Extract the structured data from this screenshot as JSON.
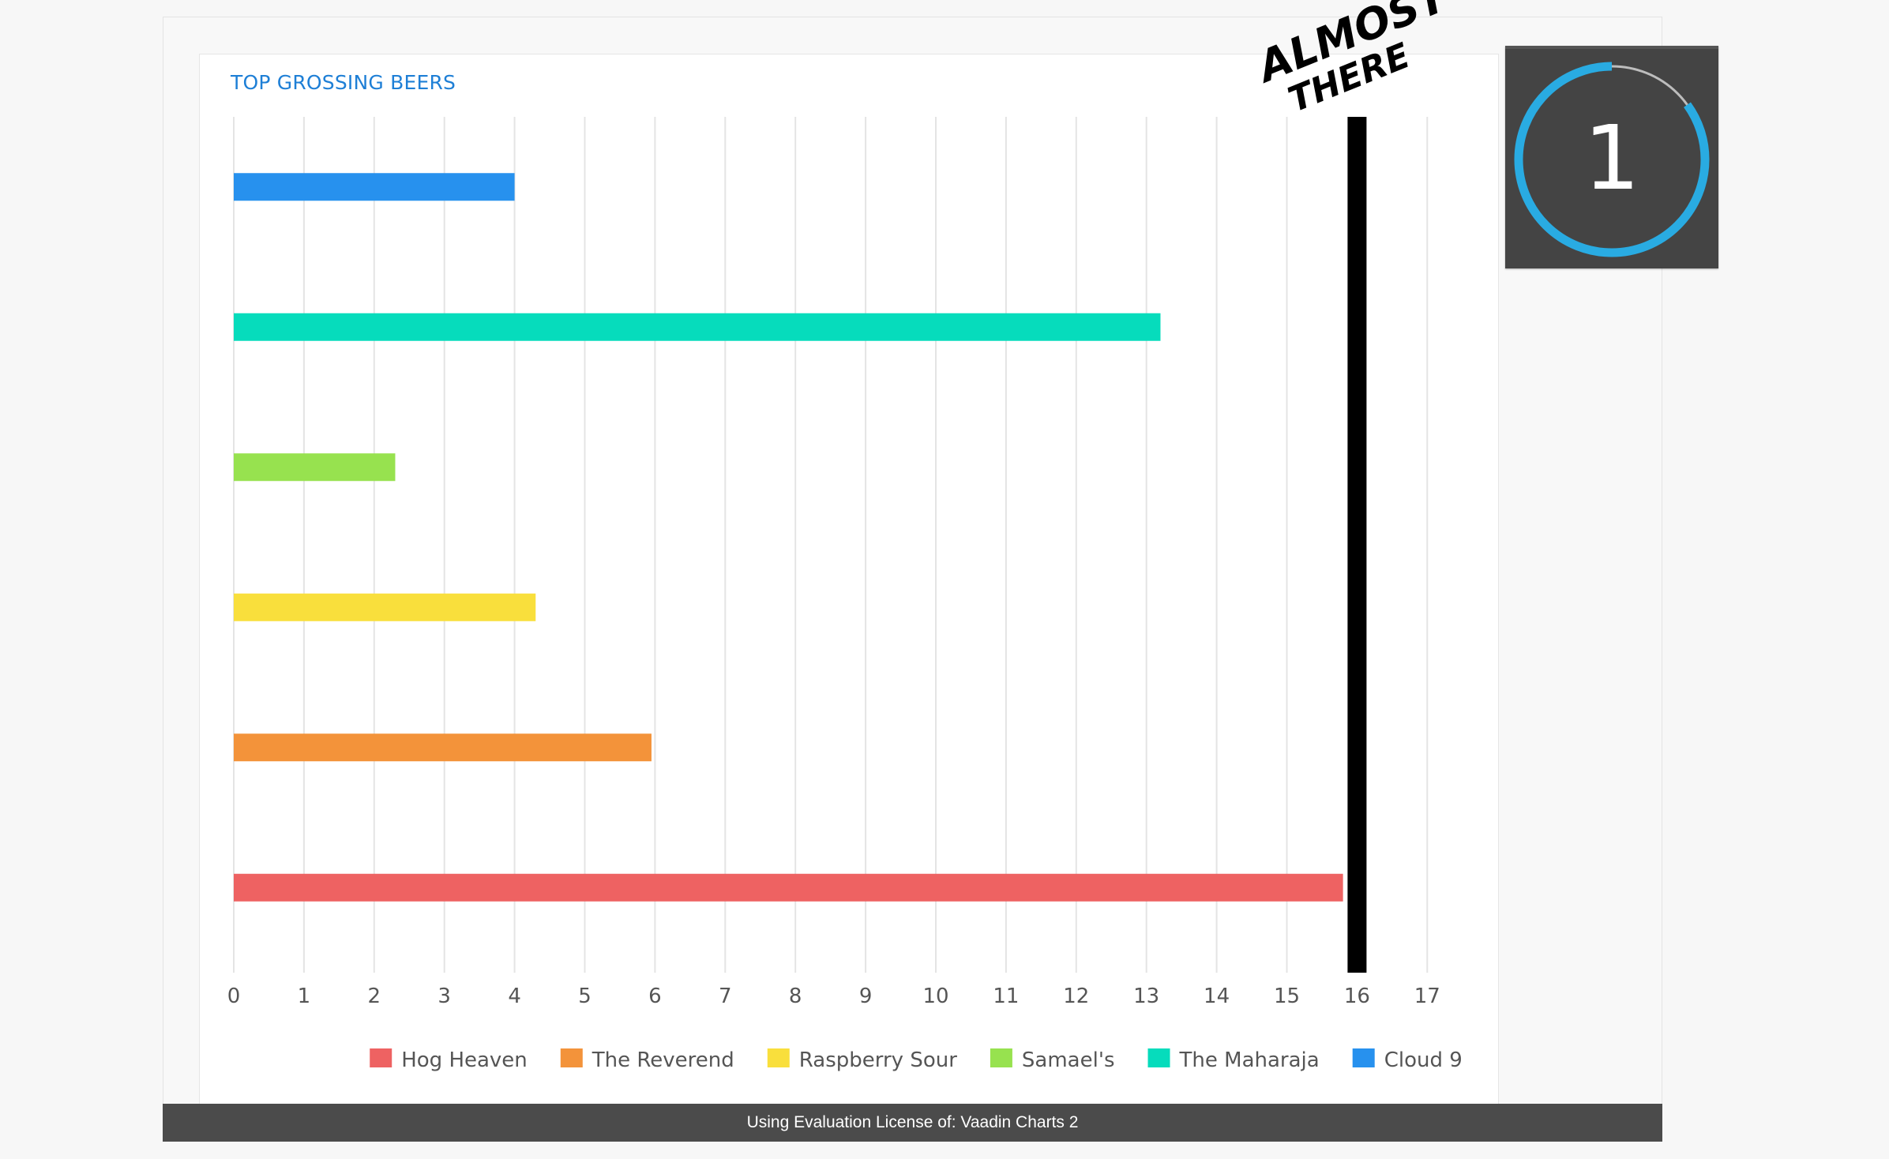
{
  "chart_data": {
    "type": "bar",
    "orientation": "horizontal",
    "title": "TOP GROSSING BEERS",
    "categories": [
      "Cloud 9",
      "The Maharaja",
      "Samael's",
      "Raspberry Sour",
      "The Reverend",
      "Hog Heaven"
    ],
    "series": [
      {
        "name": "Hog Heaven",
        "color": "#ee6262",
        "category": "Hog Heaven",
        "value": 15.8
      },
      {
        "name": "The Reverend",
        "color": "#f3933a",
        "category": "The Reverend",
        "value": 5.95
      },
      {
        "name": "Raspberry Sour",
        "color": "#f9df3c",
        "category": "Raspberry Sour",
        "value": 4.3
      },
      {
        "name": "Samael's",
        "color": "#97e24f",
        "category": "Samael's",
        "value": 2.3
      },
      {
        "name": "The Maharaja",
        "color": "#06dcbc",
        "category": "The Maharaja",
        "value": 13.2
      },
      {
        "name": "Cloud 9",
        "color": "#2791ee",
        "category": "Cloud 9",
        "value": 4.0
      }
    ],
    "xlim": [
      0,
      17
    ],
    "xticks": [
      "0",
      "1",
      "2",
      "3",
      "4",
      "5",
      "6",
      "7",
      "8",
      "9",
      "10",
      "11",
      "12",
      "13",
      "14",
      "15",
      "16",
      "17"
    ],
    "grid": true,
    "legend_position": "bottom",
    "target_line": {
      "value": 16,
      "label_line1": "ALMOST",
      "label_line2": "THERE",
      "color": "#000000"
    }
  },
  "license_text": "Using Evaluation License of: Vaadin Charts 2",
  "badge": {
    "number": "1",
    "ring_color": "#29abe2",
    "progress": 0.85
  }
}
